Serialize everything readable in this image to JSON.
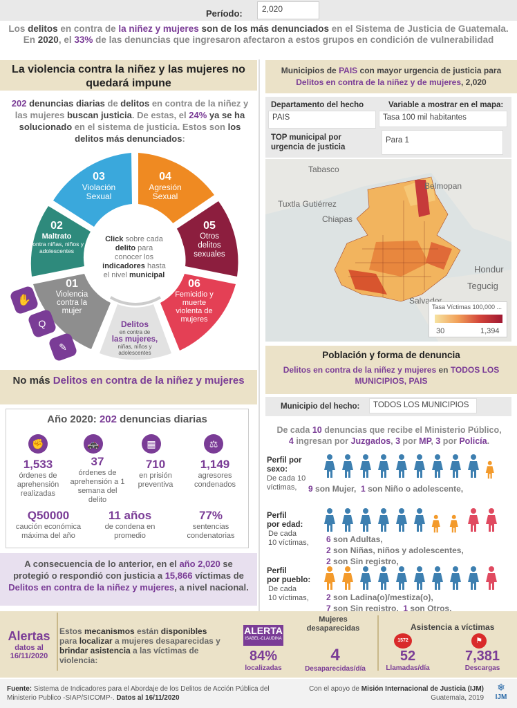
{
  "period": {
    "label": "Período:",
    "value": "2,020"
  },
  "intro": {
    "p1": "Los ",
    "p2": "delitos",
    "p3": " en contra de ",
    "p4": "la niñez y mujeres",
    "p5": " son de los más denunciados ",
    "p6": "en el Sistema de Justicia de Guatemala. En ",
    "p7": "2020",
    "p8": ", el ",
    "p9": "33%",
    "p10": " de las denuncias que ingresaron afectaron a estos grupos en condición de vulnerabilidad"
  },
  "left_header": "La violencia contra la niñez y las mujeres no quedará impune",
  "left_sub": {
    "a": "202",
    "b": " denuncias diarias",
    "c": " de ",
    "d": "delitos",
    "e": " en contra de la niñez y las mujeres ",
    "f": "buscan justicia",
    "g": ". De estas, el ",
    "h": "24%",
    "i": " ya se ha solucionado ",
    "j": "en el sistema de justicia. Estos son ",
    "k": "los delitos más denunciados",
    "l": ":"
  },
  "wheel": {
    "center_click": "Click",
    "center_1": " sobre cada",
    "center_2": "delito",
    "center_3": " para conocer los",
    "center_4": "indicadores",
    "center_5": " hasta el nivel ",
    "center_6": "municipal",
    "segments": [
      {
        "num": "01",
        "label": "Violencia contra la mujer",
        "color": "#8e8e8e"
      },
      {
        "num": "02",
        "label": "Maltrato",
        "sub": "contra niñas, niños y adolescentes",
        "color": "#2e8a7c"
      },
      {
        "num": "03",
        "label": "Violación Sexual",
        "color": "#3aa8dc"
      },
      {
        "num": "04",
        "label": "Agresión Sexual",
        "color": "#ef8a22"
      },
      {
        "num": "05",
        "label": "Otros delitos sexuales",
        "color": "#8c1e3e"
      },
      {
        "num": "06",
        "label": "Femicidio y muerte violenta de mujeres",
        "color": "#e44055"
      }
    ],
    "bottom_title": "Delitos",
    "bottom_sub1": "en contra de",
    "bottom_big": "las mujeres,",
    "bottom_sub2": "niñas, niños y adolescentes"
  },
  "right_header": {
    "a": "Municipios de ",
    "b": "PAIS",
    "c": " con mayor urgencia de justicia para ",
    "d": "Delitos en contra de la niñez y de mujeres",
    "e": ", 2,020"
  },
  "filters": {
    "dept_label": "Departamento del hecho",
    "dept_value": "PAIS",
    "var_label": "Variable a mostrar en el mapa:",
    "var_value": "Tasa 100 mil habitantes",
    "top_label": "TOP municipal por urgencia de justicia",
    "top_value": "Para 1"
  },
  "map": {
    "labels": [
      "Tabasco",
      "Belmopan",
      "Tuxtla Gutiérrez",
      "Chiapas",
      "Hondur",
      "Tegucig",
      "Salvador"
    ],
    "legend_title": "Tasa Víctimas 100,000 ...",
    "legend_min": "30",
    "legend_max": "1,394"
  },
  "pob_header": {
    "title": "Población y forma de denuncia",
    "a": "Delitos en contra de la niñez y mujeres",
    "b": " en ",
    "c": "TODOS LOS MUNICIPIOS, PAIS"
  },
  "muni": {
    "label": "Municipio del hecho:",
    "value": "TODOS LOS MUNICIPIOS"
  },
  "report": {
    "a": "De cada ",
    "b": "10",
    "c": " denuncias que recibe el Ministerio Público,",
    "d": "4",
    "e": " ingresan por ",
    "f": "Juzgados",
    "g": ", ",
    "h": "3",
    "i": " por ",
    "j": "MP",
    "k": ", ",
    "l": "3",
    "m": " por ",
    "n": "Policía",
    "o": "."
  },
  "perfil_sexo": {
    "t1": "Perfil por",
    "t2": "sexo:",
    "s1": "De cada 10",
    "s2": "víctimas,",
    "r1": "9",
    "r2": " son Mujer,",
    "r3": "1",
    "r4": " son Niño o adolescente,"
  },
  "perfil_edad": {
    "t1": "Perfil",
    "t2": "por edad:",
    "s1": "De cada",
    "s2": "10 víctimas,",
    "r1": "6",
    "r2": " son Adultas,",
    "r3": "2",
    "r4": " son Niñas, niños y adolescentes,",
    "r5": "2",
    "r6": " son Sin registro,"
  },
  "perfil_pueblo": {
    "t1": "Perfil",
    "t2": "por pueblo:",
    "s1": "De cada",
    "s2": "10 víctimas,",
    "r1": "2",
    "r2": " son Ladina(o)/mestiza(o),",
    "r3": "7",
    "r4": " son Sin registro,",
    "r5": "1",
    "r6": " son Otros,"
  },
  "nomas": {
    "a": "No más ",
    "b": "Delitos en contra de la niñez y mujeres"
  },
  "panel": {
    "title_a": "Año 2020: ",
    "title_b": "202",
    "title_c": " denuncias diarias",
    "stats": [
      {
        "num": "1,533",
        "lbl": "órdenes de aprehensión realizadas"
      },
      {
        "num": "37",
        "lbl": "órdenes de aprehensión a 1 semana del delito"
      },
      {
        "num": "710",
        "lbl": "en prisión preventiva"
      },
      {
        "num": "1,149",
        "lbl": "agresores condenados"
      }
    ],
    "row2": [
      {
        "num": "Q50000",
        "lbl": "caución económica máxima del año"
      },
      {
        "num": "11 años",
        "lbl": "de condena en promedio"
      },
      {
        "num": "77%",
        "lbl": "sentencias condenatorias"
      }
    ]
  },
  "conseq": {
    "a": "A consecuencia de lo anterior, en el ",
    "b": "año 2,020",
    "c": " se protegió o respondió con justicia a ",
    "d": "15,866",
    "e": " víctimas de ",
    "f": "Delitos en contra de la niñez y mujeres",
    "g": ", a nivel nacional."
  },
  "alertas": {
    "title": "Alertas",
    "date1": "datos al",
    "date2": "16/11/2020",
    "desc_a": "Estos ",
    "desc_b": "mecanismos",
    "desc_c": " están ",
    "desc_d": "disponibles",
    "desc_e": " para ",
    "desc_f": "localizar",
    "desc_g": " a mujeres desaparecidas y ",
    "desc_h": "brindar asistencia",
    "desc_i": " a las víctimas de violencia:",
    "alerta_logo": "ALERTA",
    "alerta_sub": "ISABEL-CLAUDINA",
    "pct": "84%",
    "pct_lbl": "localizadas",
    "missing_title": "Mujeres desaparecidas",
    "missing_num": "4",
    "missing_lbl": "Desaparecidas/día",
    "asis_title": "Asistencia a víctimas",
    "calls": "52",
    "calls_lbl": "Llamadas/día",
    "downloads": "7,381",
    "downloads_lbl": "Descargas",
    "phone_badge": "1572"
  },
  "footer": {
    "src_a": "Fuente:",
    "src_b": " Sistema de Indicadores para el Abordaje de los Delitos de Acción Pública del Ministerio Publico -SIAP/SICOMP-. ",
    "src_c": "Datos al 16/11/2020",
    "sup_a": "Con el apoyo de ",
    "sup_b": "Misión Internacional de Justicia (IJM)",
    "sup_c": "Guatemala, 2019",
    "logo": "IJM"
  },
  "colors": {
    "purple": "#7a3c96",
    "blue_person": "#3d7fb0",
    "orange_person": "#f39a2b",
    "pink_person": "#e04a60",
    "beige": "#ebe2c8"
  }
}
